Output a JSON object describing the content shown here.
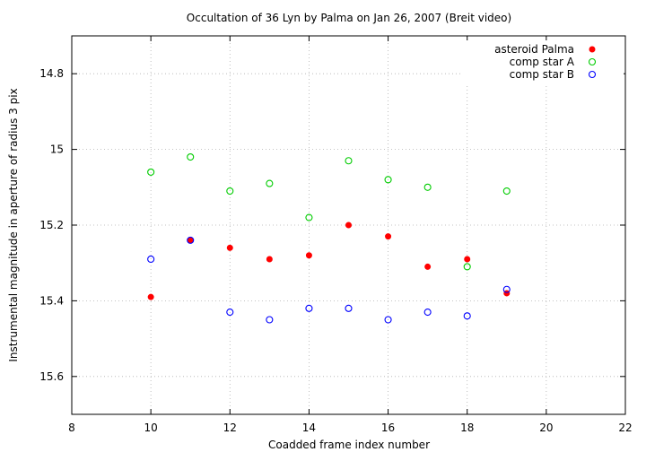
{
  "chart_data": {
    "type": "scatter",
    "title": "Occultation of 36 Lyn by Palma on Jan 26, 2007 (Breit video)",
    "xlabel": "Coadded frame index number",
    "ylabel": "Instrumental magnitude in aperture of radius 3 pix",
    "xlim": [
      8,
      22
    ],
    "ylim": [
      15.7,
      14.7
    ],
    "y_inverted": true,
    "x_ticks": [
      8,
      10,
      12,
      14,
      16,
      18,
      20,
      22
    ],
    "y_ticks": [
      14.8,
      15,
      15.2,
      15.4,
      15.6
    ],
    "x_tick_labels": [
      "8",
      "10",
      "12",
      "14",
      "16",
      "18",
      "20",
      "22"
    ],
    "y_tick_labels": [
      "14.8",
      "15",
      "15.2",
      "15.4",
      "15.6"
    ],
    "grid": true,
    "legend_position": "top-right",
    "series": [
      {
        "name": "asteroid Palma",
        "color": "#ff0000",
        "marker": "filled-circle",
        "x": [
          10,
          11,
          12,
          13,
          14,
          15,
          16,
          17,
          18,
          19
        ],
        "y": [
          15.39,
          15.24,
          15.26,
          15.29,
          15.28,
          15.2,
          15.23,
          15.31,
          15.29,
          15.38
        ]
      },
      {
        "name": "comp star A",
        "color": "#00cc00",
        "marker": "open-circle",
        "x": [
          10,
          11,
          12,
          13,
          14,
          15,
          16,
          17,
          18,
          19
        ],
        "y": [
          15.06,
          15.02,
          15.11,
          15.09,
          15.18,
          15.03,
          15.08,
          15.1,
          15.31,
          15.11
        ]
      },
      {
        "name": "comp star B",
        "color": "#0000ff",
        "marker": "open-circle",
        "x": [
          10,
          11,
          12,
          13,
          14,
          15,
          16,
          17,
          18,
          19
        ],
        "y": [
          15.29,
          15.24,
          15.43,
          15.45,
          15.42,
          15.42,
          15.45,
          15.43,
          15.44,
          15.37
        ]
      }
    ]
  }
}
